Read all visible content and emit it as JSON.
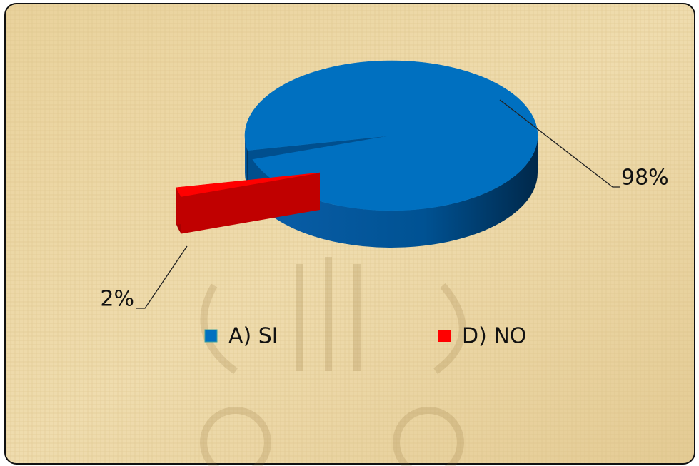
{
  "chart_data": {
    "type": "pie",
    "categories": [
      "A) SI",
      "D) NO"
    ],
    "values": [
      98,
      2
    ],
    "value_labels": [
      "98%",
      "2%"
    ],
    "colors": [
      "#0070c0",
      "#ff0000"
    ],
    "legend": "bottom"
  }
}
